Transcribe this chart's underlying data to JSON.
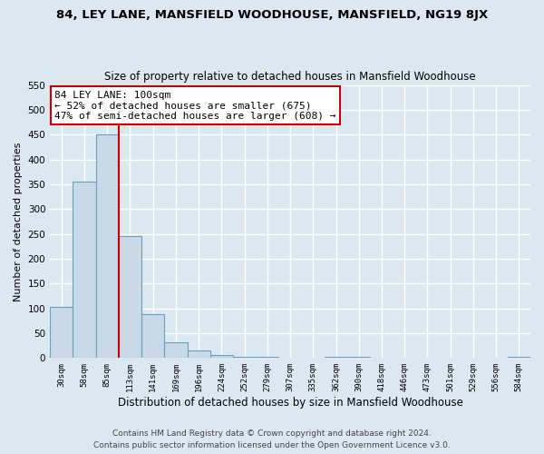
{
  "title_line1": "84, LEY LANE, MANSFIELD WOODHOUSE, MANSFIELD, NG19 8JX",
  "title_line2": "Size of property relative to detached houses in Mansfield Woodhouse",
  "xlabel": "Distribution of detached houses by size in Mansfield Woodhouse",
  "ylabel": "Number of detached properties",
  "footer_line1": "Contains HM Land Registry data © Crown copyright and database right 2024.",
  "footer_line2": "Contains public sector information licensed under the Open Government Licence v3.0.",
  "bin_labels": [
    "30sqm",
    "58sqm",
    "85sqm",
    "113sqm",
    "141sqm",
    "169sqm",
    "196sqm",
    "224sqm",
    "252sqm",
    "279sqm",
    "307sqm",
    "335sqm",
    "362sqm",
    "390sqm",
    "418sqm",
    "446sqm",
    "473sqm",
    "501sqm",
    "529sqm",
    "556sqm",
    "584sqm"
  ],
  "bar_values": [
    103,
    355,
    450,
    245,
    88,
    31,
    15,
    7,
    2,
    2,
    0,
    0,
    2,
    2,
    0,
    0,
    0,
    0,
    0,
    0,
    2
  ],
  "bar_color": "#c9d9e8",
  "bar_edge_color": "#6a9fc0",
  "ylim": [
    0,
    550
  ],
  "yticks": [
    0,
    50,
    100,
    150,
    200,
    250,
    300,
    350,
    400,
    450,
    500,
    550
  ],
  "property_line_x": 2.5,
  "annotation_text_line1": "84 LEY LANE: 100sqm",
  "annotation_text_line2": "← 52% of detached houses are smaller (675)",
  "annotation_text_line3": "47% of semi-detached houses are larger (608) →",
  "red_line_color": "#cc0000",
  "background_color": "#dce8f0",
  "plot_bg_color": "#dce8f0",
  "grid_color": "#ffffff",
  "title_fontsize": 9.5,
  "subtitle_fontsize": 8.5,
  "annotation_fontsize": 8.0,
  "xlabel_fontsize": 8.5,
  "ylabel_fontsize": 8.0,
  "footer_fontsize": 6.5
}
